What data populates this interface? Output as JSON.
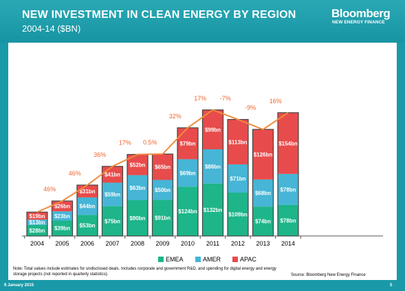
{
  "header": {
    "title": "NEW INVESTMENT IN CLEAN ENERGY BY REGION",
    "subtitle": "2004-14 ($BN)",
    "brand": "Bloomberg",
    "brand_sub": "NEW ENERGY FINANCE"
  },
  "footer": {
    "note": "Note: Total values include estimates for undisclosed deals. Includes corporate and government R&D, and spending for digital energy and energy storage projects (not reported in quarterly statistics).",
    "source": "Source: Bloomberg New Energy Finance",
    "date": "9 January 2015",
    "page": "5"
  },
  "colors": {
    "emea": "#1db589",
    "amer": "#46b5d6",
    "apac": "#e84b4b",
    "growth_line": "#f08c3c",
    "growth_label": "#f0642d"
  },
  "chart_data": {
    "type": "bar",
    "stacked": true,
    "categories": [
      "2004",
      "2005",
      "2006",
      "2007",
      "2008",
      "2009",
      "2010",
      "2011",
      "2012",
      "2013",
      "2014"
    ],
    "series": [
      {
        "name": "EMEA",
        "values": [
          28,
          39,
          53,
          75,
          90,
          91,
          124,
          132,
          109,
          74,
          78
        ]
      },
      {
        "name": "AMER",
        "values": [
          13,
          23,
          44,
          59,
          63,
          50,
          69,
          86,
          71,
          68,
          78
        ]
      },
      {
        "name": "APAC",
        "values": [
          19,
          26,
          31,
          41,
          52,
          65,
          79,
          99,
          113,
          126,
          154
        ]
      }
    ],
    "bar_labels": [
      [
        "$28bn",
        "$39bn",
        "$53bn",
        "$75bn",
        "$90bn",
        "$91bn",
        "$124bn",
        "$132bn",
        "$109bn",
        "$74bn",
        "$78bn"
      ],
      [
        "$13bn",
        "$23bn",
        "$44bn",
        "$59bn",
        "$63bn",
        "$50bn",
        "$69bn",
        "$86bn",
        "$71bn",
        "$68bn",
        "$78bn"
      ],
      [
        "$19bn",
        "$26bn",
        "$31bn",
        "$41bn",
        "$52bn",
        "$65bn",
        "$79bn",
        "$99bn",
        "$113bn",
        "$126bn",
        "$154bn"
      ]
    ],
    "growth_labels": [
      "46%",
      "46%",
      "36%",
      "17%",
      "0.5%",
      "32%",
      "17%",
      "-7%",
      "-9%",
      "16%"
    ],
    "ylim": [
      0,
      330
    ],
    "legend": [
      "EMEA",
      "AMER",
      "APAC"
    ],
    "legend_position": "bottom",
    "grid": false
  }
}
